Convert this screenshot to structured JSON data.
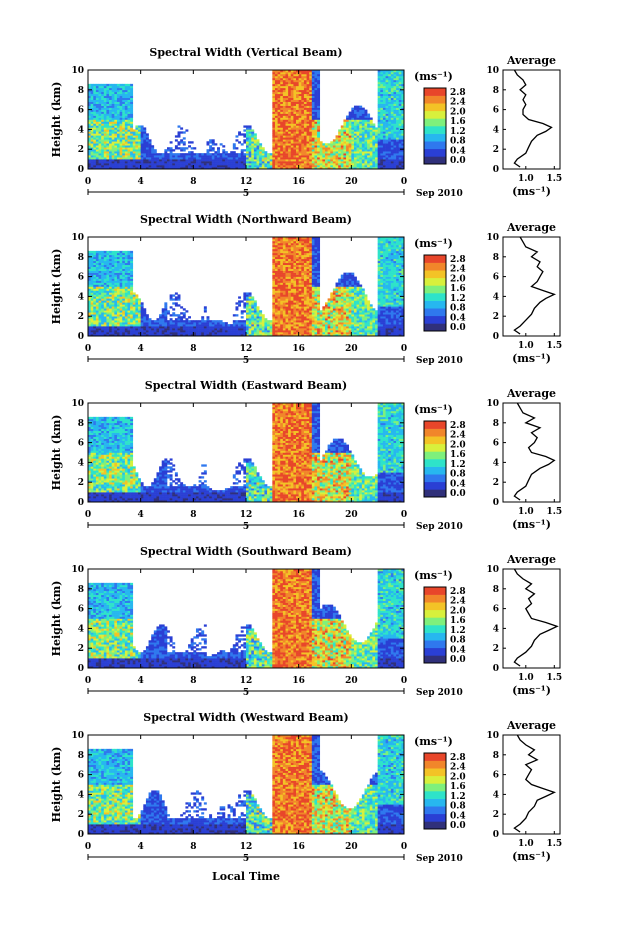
{
  "figure": {
    "xlabel": "Local Time",
    "date_left": "5",
    "date_right": "Sep 2010"
  },
  "colorbar": {
    "unit": "(ms⁻¹)",
    "ticks": [
      "2.8",
      "2.4",
      "2.0",
      "1.6",
      "1.2",
      "0.8",
      "0.4",
      "0.0"
    ],
    "colors": [
      "#30307a",
      "#2a3fd4",
      "#2f78ee",
      "#27b7ef",
      "#2ee3c9",
      "#7ef07c",
      "#d8f03c",
      "#f3c326",
      "#f1862a",
      "#e8462a"
    ]
  },
  "chart_data": [
    {
      "type": "heatmap",
      "title": "Spectral Width (Vertical Beam)",
      "ylabel": "Height (km)",
      "xlabel": "",
      "xlim": [
        0,
        24
      ],
      "ylim": [
        0,
        10
      ],
      "xticks": [
        "0",
        "4",
        "8",
        "12",
        "16",
        "20",
        "0"
      ],
      "yticks": [
        "0",
        "2",
        "4",
        "6",
        "8",
        "10"
      ],
      "clim": [
        0.0,
        2.8
      ],
      "avg_title": "Average",
      "avg_xlabel": "(ms⁻¹)",
      "avg_xticks": [
        "1.0",
        "1.5"
      ],
      "avg_xlim": [
        0.6,
        1.6
      ],
      "avg_profile": {
        "height": [
          0.2,
          0.6,
          1.0,
          1.6,
          2.2,
          2.8,
          3.4,
          3.8,
          4.2,
          4.6,
          5.0,
          5.5,
          6.0,
          6.5,
          7.0,
          7.5,
          8.0,
          8.5,
          9.0,
          9.5,
          10.0
        ],
        "value": [
          0.9,
          0.8,
          0.85,
          1.0,
          1.05,
          1.1,
          1.2,
          1.35,
          1.45,
          1.3,
          1.05,
          0.95,
          0.95,
          1.0,
          0.95,
          1.0,
          0.9,
          1.0,
          0.95,
          0.85,
          0.8
        ]
      }
    },
    {
      "type": "heatmap",
      "title": "Spectral Width (Northward Beam)",
      "ylabel": "Height (km)",
      "xlabel": "",
      "xlim": [
        0,
        24
      ],
      "ylim": [
        0,
        10
      ],
      "xticks": [
        "0",
        "4",
        "8",
        "12",
        "16",
        "20",
        "0"
      ],
      "yticks": [
        "0",
        "2",
        "4",
        "6",
        "8",
        "10"
      ],
      "clim": [
        0.0,
        2.8
      ],
      "avg_title": "Average",
      "avg_xlabel": "(ms⁻¹)",
      "avg_xticks": [
        "1.0",
        "1.5"
      ],
      "avg_xlim": [
        0.6,
        1.6
      ],
      "avg_profile": {
        "height": [
          0.2,
          0.6,
          1.0,
          1.6,
          2.2,
          2.8,
          3.4,
          3.8,
          4.2,
          4.6,
          5.0,
          5.5,
          6.0,
          6.5,
          7.0,
          7.5,
          8.0,
          8.5,
          9.0,
          9.5,
          10.0
        ],
        "value": [
          0.9,
          0.8,
          0.9,
          1.0,
          1.1,
          1.15,
          1.25,
          1.35,
          1.5,
          1.3,
          1.1,
          1.2,
          1.25,
          1.3,
          1.2,
          1.25,
          1.1,
          1.2,
          1.0,
          0.95,
          0.9
        ]
      }
    },
    {
      "type": "heatmap",
      "title": "Spectral Width (Eastward Beam)",
      "ylabel": "Height (km)",
      "xlabel": "",
      "xlim": [
        0,
        24
      ],
      "ylim": [
        0,
        10
      ],
      "xticks": [
        "0",
        "4",
        "8",
        "12",
        "16",
        "20",
        "0"
      ],
      "yticks": [
        "0",
        "2",
        "4",
        "6",
        "8",
        "10"
      ],
      "clim": [
        0.0,
        2.8
      ],
      "avg_title": "Average",
      "avg_xlabel": "(ms⁻¹)",
      "avg_xticks": [
        "1.0",
        "1.5"
      ],
      "avg_xlim": [
        0.6,
        1.6
      ],
      "avg_profile": {
        "height": [
          0.2,
          0.6,
          1.0,
          1.6,
          2.2,
          2.8,
          3.4,
          3.8,
          4.2,
          4.6,
          5.0,
          5.5,
          6.0,
          6.5,
          7.0,
          7.5,
          8.0,
          8.5,
          9.0,
          9.5,
          10.0
        ],
        "value": [
          0.9,
          0.8,
          0.85,
          1.0,
          1.05,
          1.1,
          1.25,
          1.4,
          1.5,
          1.35,
          1.1,
          1.05,
          1.15,
          1.2,
          1.1,
          1.25,
          1.0,
          1.15,
          0.95,
          0.9,
          0.85
        ]
      }
    },
    {
      "type": "heatmap",
      "title": "Spectral Width (Southward Beam)",
      "ylabel": "Height (km)",
      "xlabel": "",
      "xlim": [
        0,
        24
      ],
      "ylim": [
        0,
        10
      ],
      "xticks": [
        "0",
        "4",
        "8",
        "12",
        "16",
        "20",
        "0"
      ],
      "yticks": [
        "0",
        "2",
        "4",
        "6",
        "8",
        "10"
      ],
      "clim": [
        0.0,
        2.8
      ],
      "avg_title": "Average",
      "avg_xlabel": "(ms⁻¹)",
      "avg_xticks": [
        "1.0",
        "1.5"
      ],
      "avg_xlim": [
        0.6,
        1.6
      ],
      "avg_profile": {
        "height": [
          0.2,
          0.6,
          1.0,
          1.6,
          2.2,
          2.8,
          3.4,
          3.8,
          4.2,
          4.6,
          5.0,
          5.5,
          6.0,
          6.5,
          7.0,
          7.5,
          8.0,
          8.5,
          9.0,
          9.5,
          10.0
        ],
        "value": [
          0.9,
          0.8,
          0.85,
          1.0,
          1.1,
          1.15,
          1.25,
          1.4,
          1.55,
          1.35,
          1.1,
          1.05,
          1.0,
          1.1,
          1.05,
          1.15,
          1.0,
          1.1,
          0.95,
          0.85,
          0.8
        ]
      }
    },
    {
      "type": "heatmap",
      "title": "Spectral Width (Westward Beam)",
      "ylabel": "Height (km)",
      "xlabel": "Local Time",
      "xlim": [
        0,
        24
      ],
      "ylim": [
        0,
        10
      ],
      "xticks": [
        "0",
        "4",
        "8",
        "12",
        "16",
        "20",
        "0"
      ],
      "yticks": [
        "0",
        "2",
        "4",
        "6",
        "8",
        "10"
      ],
      "clim": [
        0.0,
        2.8
      ],
      "avg_title": "Average",
      "avg_xlabel": "(ms⁻¹)",
      "avg_xticks": [
        "1.0",
        "1.5"
      ],
      "avg_xlim": [
        0.6,
        1.6
      ],
      "avg_profile": {
        "height": [
          0.2,
          0.6,
          1.0,
          1.6,
          2.2,
          2.8,
          3.4,
          3.8,
          4.2,
          4.6,
          5.0,
          5.5,
          6.0,
          6.5,
          7.0,
          7.5,
          8.0,
          8.5,
          9.0,
          9.5,
          10.0
        ],
        "value": [
          0.9,
          0.8,
          0.9,
          1.0,
          1.05,
          1.15,
          1.2,
          1.35,
          1.5,
          1.3,
          1.1,
          1.0,
          1.05,
          1.1,
          1.0,
          1.2,
          1.05,
          1.15,
          1.0,
          0.9,
          0.85
        ]
      }
    }
  ]
}
